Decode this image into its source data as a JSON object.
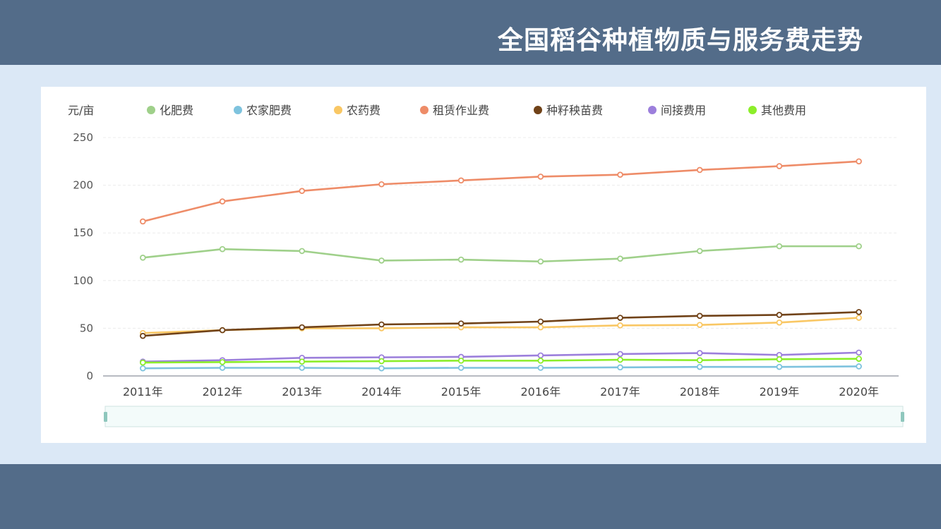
{
  "page": {
    "title": "全国稻谷种植物质与服务费走势"
  },
  "chart_data": {
    "type": "line",
    "unit_label": "元/亩",
    "categories": [
      "2011年",
      "2012年",
      "2013年",
      "2014年",
      "2015年",
      "2016年",
      "2017年",
      "2018年",
      "2019年",
      "2020年"
    ],
    "ylim": [
      0,
      250
    ],
    "yticks": [
      0,
      50,
      100,
      150,
      200,
      250
    ],
    "grid": true,
    "legend_position": "top",
    "series": [
      {
        "name": "化肥费",
        "color": "#9fd08a",
        "values": [
          124,
          133,
          131,
          121,
          122,
          120,
          123,
          131,
          136,
          136
        ]
      },
      {
        "name": "农家肥费",
        "color": "#7ec3de",
        "values": [
          8,
          8.5,
          8.5,
          8,
          8.5,
          8.5,
          9,
          9.5,
          9.5,
          10
        ]
      },
      {
        "name": "农药费",
        "color": "#f9c764",
        "values": [
          45,
          48,
          50,
          50,
          51,
          51,
          53,
          53.5,
          56,
          61
        ]
      },
      {
        "name": "租赁作业费",
        "color": "#ee8c68",
        "values": [
          162,
          183,
          194,
          201,
          205,
          209,
          211,
          216,
          220,
          225
        ]
      },
      {
        "name": "种籽秧苗费",
        "color": "#704218",
        "values": [
          42,
          48,
          51,
          54,
          55,
          57,
          61,
          63,
          64,
          67
        ]
      },
      {
        "name": "间接费用",
        "color": "#9c7fdc",
        "values": [
          15,
          16.5,
          19,
          19.5,
          20,
          21.5,
          23,
          24,
          22,
          24.5
        ]
      },
      {
        "name": "其他费用",
        "color": "#8cee2a",
        "values": [
          14,
          14.5,
          15,
          15.5,
          16,
          16,
          17,
          16.5,
          17.5,
          18
        ]
      }
    ]
  }
}
